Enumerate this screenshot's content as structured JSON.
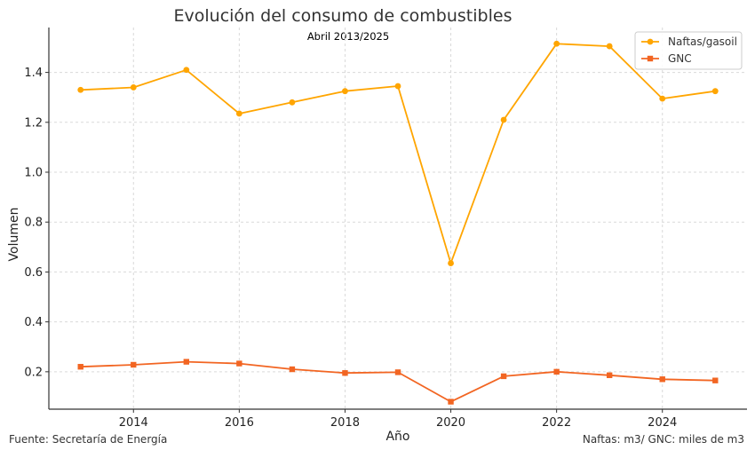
{
  "chart_data": {
    "type": "line",
    "title": "Evolución del consumo de combustibles",
    "subtitle": "Abril 2013/2025",
    "xlabel": "Año",
    "ylabel": "Volumen",
    "x": [
      2013,
      2014,
      2015,
      2016,
      2017,
      2018,
      2019,
      2020,
      2021,
      2022,
      2023,
      2024,
      2025
    ],
    "xlim": [
      2012.4,
      2025.6
    ],
    "ylim": [
      0.05,
      1.58
    ],
    "xticks": [
      2014,
      2016,
      2018,
      2020,
      2022,
      2024
    ],
    "yticks": [
      0.2,
      0.4,
      0.6,
      0.8,
      1.0,
      1.2,
      1.4
    ],
    "grid": true,
    "legend_position": "top-right",
    "series": [
      {
        "name": "Naftas/gasoil",
        "color": "#FFA500",
        "marker": "circle",
        "values": [
          1.33,
          1.34,
          1.41,
          1.235,
          1.28,
          1.325,
          1.345,
          0.635,
          1.21,
          1.515,
          1.505,
          1.295,
          1.325
        ]
      },
      {
        "name": "GNC",
        "color": "#F26522",
        "marker": "square",
        "values": [
          0.22,
          0.228,
          0.24,
          0.233,
          0.21,
          0.195,
          0.198,
          0.08,
          0.182,
          0.2,
          0.186,
          0.17,
          0.165
        ]
      }
    ]
  },
  "footer": {
    "source": "Fuente: Secretaría de Energía",
    "units": "Naftas: m3/ GNC: miles de m3"
  }
}
